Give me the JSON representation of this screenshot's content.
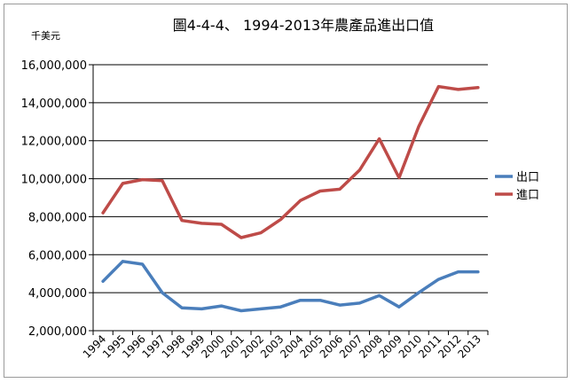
{
  "chart_data": {
    "type": "line",
    "title": "圖4-4-4、 1994-2013年農產品進出口值",
    "ylabel": "千美元",
    "xlabel": "",
    "categories": [
      "1994",
      "1995",
      "1996",
      "1997",
      "1998",
      "1999",
      "2000",
      "2001",
      "2002",
      "2003",
      "2004",
      "2005",
      "2006",
      "2007",
      "2008",
      "2009",
      "2010",
      "2011",
      "2012",
      "2013"
    ],
    "ylim": [
      2000000,
      16000000
    ],
    "yticks": [
      2000000,
      4000000,
      6000000,
      8000000,
      10000000,
      12000000,
      14000000,
      16000000
    ],
    "ytick_labels": [
      "2,000,000",
      "4,000,000",
      "6,000,000",
      "8,000,000",
      "10,000,000",
      "12,000,000",
      "14,000,000",
      "16,000,000"
    ],
    "grid": true,
    "legend_position": "right",
    "series": [
      {
        "name": "出口",
        "color": "#4a7ebb",
        "values": [
          4600000,
          5650000,
          5500000,
          4000000,
          3200000,
          3150000,
          3300000,
          3050000,
          3150000,
          3250000,
          3600000,
          3600000,
          3350000,
          3450000,
          3850000,
          3250000,
          4000000,
          4700000,
          5100000,
          5100000
        ]
      },
      {
        "name": "進口",
        "color": "#be4b48",
        "values": [
          8200000,
          9750000,
          9950000,
          9900000,
          7800000,
          7650000,
          7600000,
          6900000,
          7150000,
          7850000,
          8850000,
          9350000,
          9450000,
          10450000,
          12100000,
          10050000,
          12750000,
          14850000,
          14700000,
          14800000
        ]
      }
    ]
  }
}
